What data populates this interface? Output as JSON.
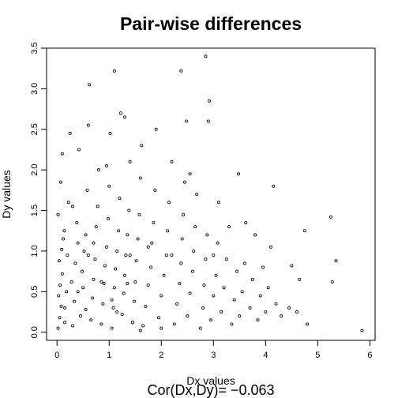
{
  "chart_data": {
    "type": "scatter",
    "title": "Pair-wise differences",
    "xlabel": "Dx values",
    "ylabel": "Dy values",
    "subtitle": "Cor(Dx,Dy)=  −0.063",
    "xlim": [
      -0.2,
      6.1
    ],
    "ylim": [
      -0.1,
      3.5
    ],
    "xticks": [
      "0",
      "1",
      "2",
      "3",
      "4",
      "5",
      "6"
    ],
    "yticks": [
      "0.0",
      "0.5",
      "1.0",
      "1.5",
      "2.0",
      "2.5",
      "3.0",
      "3.5"
    ],
    "grid": false,
    "marker": "open-circle",
    "points": [
      [
        0.02,
        0.05
      ],
      [
        0.05,
        0.18
      ],
      [
        0.08,
        0.32
      ],
      [
        0.03,
        0.45
      ],
      [
        0.06,
        0.58
      ],
      [
        0.1,
        0.72
      ],
      [
        0.04,
        0.88
      ],
      [
        0.09,
        1.02
      ],
      [
        0.12,
        1.15
      ],
      [
        0.02,
        1.45
      ],
      [
        0.07,
        1.85
      ],
      [
        0.1,
        2.2
      ],
      [
        0.15,
        0.12
      ],
      [
        0.18,
        0.5
      ],
      [
        0.2,
        0.95
      ],
      [
        0.14,
        1.25
      ],
      [
        0.22,
        1.6
      ],
      [
        0.25,
        2.45
      ],
      [
        0.3,
        0.08
      ],
      [
        0.33,
        0.38
      ],
      [
        0.28,
        0.62
      ],
      [
        0.35,
        0.85
      ],
      [
        0.4,
        1.1
      ],
      [
        0.38,
        1.35
      ],
      [
        0.42,
        2.25
      ],
      [
        0.45,
        0.2
      ],
      [
        0.5,
        0.55
      ],
      [
        0.48,
        0.75
      ],
      [
        0.52,
        1.0
      ],
      [
        0.55,
        1.2
      ],
      [
        0.58,
        1.75
      ],
      [
        0.6,
        2.55
      ],
      [
        0.62,
        3.05
      ],
      [
        0.65,
        0.15
      ],
      [
        0.68,
        0.42
      ],
      [
        0.7,
        0.65
      ],
      [
        0.73,
        0.9
      ],
      [
        0.75,
        1.3
      ],
      [
        0.78,
        1.55
      ],
      [
        0.8,
        2.0
      ],
      [
        0.85,
        0.1
      ],
      [
        0.88,
        0.35
      ],
      [
        0.9,
        0.6
      ],
      [
        0.92,
        0.82
      ],
      [
        0.95,
        1.05
      ],
      [
        0.98,
        1.4
      ],
      [
        1.0,
        1.8
      ],
      [
        1.02,
        2.45
      ],
      [
        1.05,
        0.05
      ],
      [
        1.08,
        0.3
      ],
      [
        1.1,
        0.55
      ],
      [
        1.12,
        0.78
      ],
      [
        1.15,
        1.0
      ],
      [
        1.18,
        1.25
      ],
      [
        1.2,
        1.65
      ],
      [
        1.1,
        3.22
      ],
      [
        1.22,
        2.7
      ],
      [
        1.25,
        0.22
      ],
      [
        1.28,
        0.48
      ],
      [
        1.3,
        0.7
      ],
      [
        1.32,
        0.95
      ],
      [
        1.35,
        1.2
      ],
      [
        1.38,
        1.5
      ],
      [
        1.4,
        2.1
      ],
      [
        1.45,
        0.12
      ],
      [
        1.48,
        0.38
      ],
      [
        1.5,
        0.62
      ],
      [
        1.52,
        0.88
      ],
      [
        1.55,
        1.15
      ],
      [
        1.58,
        1.45
      ],
      [
        1.6,
        1.9
      ],
      [
        1.62,
        2.3
      ],
      [
        1.65,
        0.08
      ],
      [
        1.7,
        0.32
      ],
      [
        1.75,
        0.58
      ],
      [
        1.8,
        0.8
      ],
      [
        1.82,
        1.1
      ],
      [
        1.85,
        1.35
      ],
      [
        1.88,
        1.75
      ],
      [
        1.9,
        2.5
      ],
      [
        1.95,
        0.18
      ],
      [
        2.0,
        0.45
      ],
      [
        2.05,
        0.7
      ],
      [
        2.1,
        0.95
      ],
      [
        2.12,
        1.25
      ],
      [
        2.15,
        1.6
      ],
      [
        2.2,
        2.1
      ],
      [
        2.25,
        0.1
      ],
      [
        2.3,
        0.35
      ],
      [
        2.35,
        0.6
      ],
      [
        2.38,
        0.85
      ],
      [
        2.4,
        1.15
      ],
      [
        2.42,
        1.45
      ],
      [
        2.45,
        1.85
      ],
      [
        2.48,
        2.6
      ],
      [
        2.38,
        3.22
      ],
      [
        2.5,
        0.2
      ],
      [
        2.55,
        0.48
      ],
      [
        2.6,
        0.75
      ],
      [
        2.62,
        1.0
      ],
      [
        2.65,
        1.3
      ],
      [
        2.68,
        1.7
      ],
      [
        2.75,
        0.05
      ],
      [
        2.8,
        0.3
      ],
      [
        2.82,
        0.58
      ],
      [
        2.85,
        0.9
      ],
      [
        2.88,
        1.2
      ],
      [
        2.9,
        2.6
      ],
      [
        2.85,
        3.4
      ],
      [
        2.92,
        2.85
      ],
      [
        2.95,
        0.15
      ],
      [
        3.0,
        0.45
      ],
      [
        3.05,
        0.7
      ],
      [
        3.08,
        1.1
      ],
      [
        3.1,
        1.6
      ],
      [
        3.15,
        0.25
      ],
      [
        3.2,
        0.55
      ],
      [
        3.25,
        0.9
      ],
      [
        3.3,
        1.3
      ],
      [
        3.35,
        0.1
      ],
      [
        3.4,
        0.4
      ],
      [
        3.45,
        0.75
      ],
      [
        3.48,
        1.95
      ],
      [
        3.5,
        0.2
      ],
      [
        3.55,
        0.5
      ],
      [
        3.6,
        0.85
      ],
      [
        3.62,
        1.35
      ],
      [
        3.7,
        0.3
      ],
      [
        3.75,
        0.65
      ],
      [
        3.8,
        1.2
      ],
      [
        3.85,
        0.15
      ],
      [
        3.9,
        0.45
      ],
      [
        3.95,
        0.8
      ],
      [
        4.0,
        0.25
      ],
      [
        4.05,
        0.55
      ],
      [
        4.1,
        1.05
      ],
      [
        4.15,
        1.8
      ],
      [
        4.2,
        0.35
      ],
      [
        4.3,
        0.2
      ],
      [
        4.45,
        0.3
      ],
      [
        4.5,
        0.82
      ],
      [
        4.6,
        0.25
      ],
      [
        4.65,
        0.65
      ],
      [
        4.75,
        1.25
      ],
      [
        4.8,
        0.1
      ],
      [
        5.25,
        1.42
      ],
      [
        5.28,
        0.62
      ],
      [
        5.35,
        0.88
      ],
      [
        5.85,
        0.02
      ],
      [
        1.6,
        0.02
      ],
      [
        2.0,
        0.05
      ],
      [
        0.6,
        0.95
      ],
      [
        0.4,
        0.5
      ],
      [
        0.7,
        1.1
      ],
      [
        1.05,
        0.4
      ],
      [
        1.4,
        0.95
      ],
      [
        0.3,
        1.55
      ],
      [
        0.95,
        2.05
      ],
      [
        1.3,
        2.65
      ],
      [
        2.2,
        0.95
      ],
      [
        0.15,
        0.3
      ],
      [
        0.55,
        0.28
      ],
      [
        0.85,
        0.62
      ],
      [
        1.15,
        0.25
      ],
      [
        1.35,
        0.6
      ],
      [
        1.75,
        1.05
      ],
      [
        2.55,
        1.95
      ],
      [
        3.0,
        0.95
      ]
    ]
  }
}
